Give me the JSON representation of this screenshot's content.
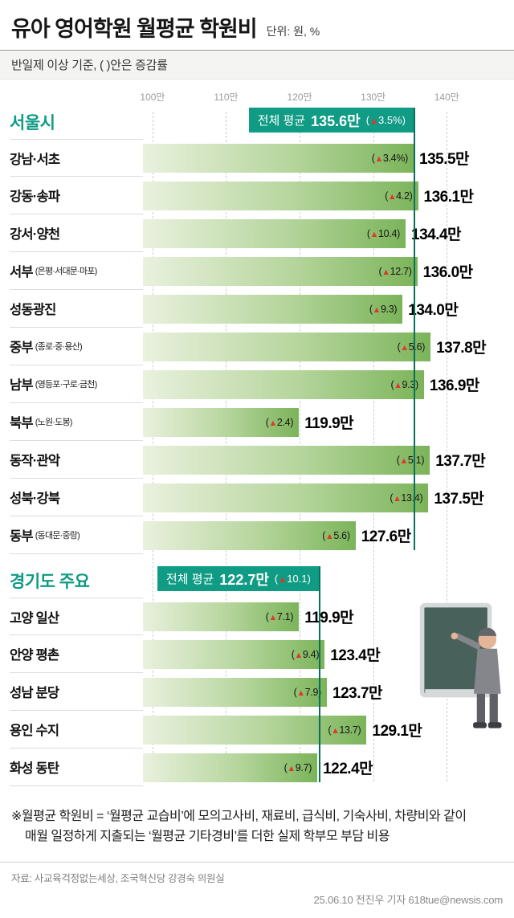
{
  "header": {
    "title": "유아 영어학원 월평균 학원비",
    "unit": "단위: 원, %",
    "subtitle": "반일제 이상 기준, ( )안은 증감률"
  },
  "chart_data": {
    "type": "bar",
    "orientation": "horizontal",
    "value_unit": "만원",
    "grid": "dashed-vertical",
    "axis": {
      "min": 100,
      "max": 140,
      "ticks": [
        {
          "label": "100만",
          "value": 100
        },
        {
          "label": "110만",
          "value": 110
        },
        {
          "label": "120만",
          "value": 120
        },
        {
          "label": "130만",
          "value": 130
        },
        {
          "label": "140만",
          "value": 140
        }
      ]
    },
    "sections": [
      {
        "name": "서울시",
        "average": {
          "label": "전체 평균",
          "value": 135.6,
          "value_text": "135.6만",
          "delta_text": "(▲3.5%)"
        },
        "rows": [
          {
            "label": "강남·서초",
            "sub": "",
            "value": 135.5,
            "value_text": "135.5만",
            "delta_text": "(▲3.4%)"
          },
          {
            "label": "강동·송파",
            "sub": "",
            "value": 136.1,
            "value_text": "136.1만",
            "delta_text": "(▲4.2)"
          },
          {
            "label": "강서·양천",
            "sub": "",
            "value": 134.4,
            "value_text": "134.4만",
            "delta_text": "(▲10.4)"
          },
          {
            "label": "서부",
            "sub": "(은평·서대문·마포)",
            "value": 136.0,
            "value_text": "136.0만",
            "delta_text": "(▲12.7)"
          },
          {
            "label": "성동광진",
            "sub": "",
            "value": 134.0,
            "value_text": "134.0만",
            "delta_text": "(▲9.3)"
          },
          {
            "label": "중부",
            "sub": "(종로·중·용산)",
            "value": 137.8,
            "value_text": "137.8만",
            "delta_text": "(▲5.6)"
          },
          {
            "label": "남부",
            "sub": "(영등포·구로·금천)",
            "value": 136.9,
            "value_text": "136.9만",
            "delta_text": "(▲9.3)"
          },
          {
            "label": "북부",
            "sub": "(노원·도봉)",
            "value": 119.9,
            "value_text": "119.9만",
            "delta_text": "(▲2.4)"
          },
          {
            "label": "동작·관악",
            "sub": "",
            "value": 137.7,
            "value_text": "137.7만",
            "delta_text": "(▲5.1)"
          },
          {
            "label": "성북·강북",
            "sub": "",
            "value": 137.5,
            "value_text": "137.5만",
            "delta_text": "(▲13.4)"
          },
          {
            "label": "동부",
            "sub": "(동대문·중랑)",
            "value": 127.6,
            "value_text": "127.6만",
            "delta_text": "(▲5.6)"
          }
        ]
      },
      {
        "name": "경기도 주요",
        "average": {
          "label": "전체 평균",
          "value": 122.7,
          "value_text": "122.7만",
          "delta_text": "(▲10.1)"
        },
        "rows": [
          {
            "label": "고양 일산",
            "sub": "",
            "value": 119.9,
            "value_text": "119.9만",
            "delta_text": "(▲7.1)"
          },
          {
            "label": "안양 평촌",
            "sub": "",
            "value": 123.4,
            "value_text": "123.4만",
            "delta_text": "(▲9.4)"
          },
          {
            "label": "성남 분당",
            "sub": "",
            "value": 123.7,
            "value_text": "123.7만",
            "delta_text": "(▲7.9)"
          },
          {
            "label": "용인 수지",
            "sub": "",
            "value": 129.1,
            "value_text": "129.1만",
            "delta_text": "(▲13.7)"
          },
          {
            "label": "화성 동탄",
            "sub": "",
            "value": 122.4,
            "value_text": "122.4만",
            "delta_text": "(▲9.7)"
          }
        ]
      }
    ]
  },
  "footnote": {
    "line1": "※월평균 학원비 = ‘월평균 교습비’에 모의고사비, 재료비, 급식비, 기숙사비, 차량비와 같이",
    "line2": "매월 일정하게 지출되는 ‘월평균 기타경비’를 더한 실제 학부모 부담 비용"
  },
  "footer": {
    "source": "자료: 사교육걱정없는세상, 조국혁신당 강경숙 의원실",
    "credit": "25.06.10 전진우 기자 618tue@newsis.com"
  },
  "illustration": "teacher-at-blackboard",
  "colors": {
    "accent": "#0f9b84",
    "accent_dark": "#0a6f5b",
    "red": "#e2362a",
    "bar_start": "#eaf1de",
    "bar_mid": "#b5d59c",
    "bar_end": "#7bb45a",
    "grid": "#c9cdcd"
  }
}
